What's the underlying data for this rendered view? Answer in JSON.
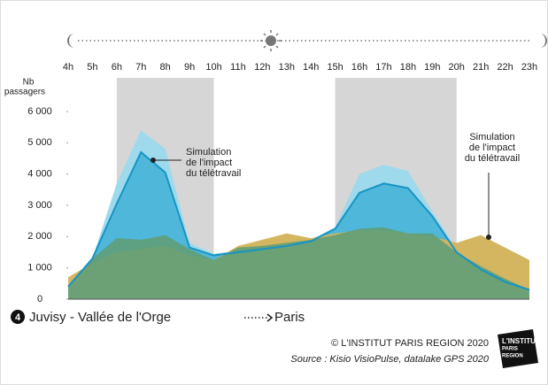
{
  "chart_data": {
    "type": "area",
    "categories": [
      "4h",
      "5h",
      "6h",
      "7h",
      "8h",
      "9h",
      "10h",
      "11h",
      "12h",
      "13h",
      "14h",
      "15h",
      "16h",
      "17h",
      "18h",
      "19h",
      "20h",
      "21h",
      "22h",
      "23h"
    ],
    "ylabel": [
      "Nb",
      "passagers"
    ],
    "ylim": [
      0,
      6000
    ],
    "yticks": [
      0,
      {
        "value": 1000,
        "label": "1 000"
      },
      {
        "value": 2000,
        "label": "2 000"
      },
      {
        "value": 3000,
        "label": "3 000"
      },
      {
        "value": 4000,
        "label": "4 000"
      },
      {
        "value": 5000,
        "label": "5 000"
      },
      {
        "value": 6000,
        "label": "6 000"
      }
    ],
    "peak_periods": [
      [
        "6h",
        "10h"
      ],
      [
        "15h",
        "20h"
      ]
    ],
    "series": [
      {
        "color": "#9fd9ec",
        "values": [
          400,
          1300,
          3700,
          5400,
          4800,
          1800,
          1450,
          1550,
          1650,
          1750,
          1900,
          2300,
          4000,
          4300,
          4100,
          2800,
          1600,
          1000,
          600,
          300
        ]
      },
      {
        "color": "#4fb7d9",
        "line_color": "#1694c4",
        "values": [
          400,
          1300,
          3050,
          4700,
          4050,
          1650,
          1400,
          1500,
          1600,
          1700,
          1850,
          2250,
          3400,
          3700,
          3550,
          2650,
          1500,
          950,
          550,
          300
        ]
      },
      {
        "color": "#d4b560",
        "values": [
          700,
          1150,
          1500,
          1600,
          1700,
          1400,
          1250,
          1700,
          1900,
          2100,
          1950,
          2100,
          2200,
          2200,
          2100,
          2000,
          1800,
          2050,
          1650,
          1250
        ]
      },
      {
        "color": "#5f9f78",
        "values": [
          400,
          1300,
          1950,
          1900,
          2050,
          1600,
          1250,
          1650,
          1700,
          1800,
          1900,
          2050,
          2250,
          2300,
          2100,
          2100,
          1500,
          1050,
          650,
          300
        ]
      }
    ],
    "annotations": [
      {
        "text": [
          "Simulation",
          "de l'impact",
          "du télétravail"
        ]
      },
      {
        "text": [
          "Simulation",
          "de l'impact",
          "du télétravail"
        ]
      }
    ],
    "route": {
      "number": "4",
      "from": "Juvisy - Vallée de l'Orge",
      "to": "Paris"
    },
    "copyright": "© L'INSTITUT PARIS REGION 2020",
    "source": "Source : Kisio VisioPulse, datalake GPS 2020",
    "logo": [
      "L'INSTITUT",
      "PARIS",
      "REGION"
    ]
  }
}
